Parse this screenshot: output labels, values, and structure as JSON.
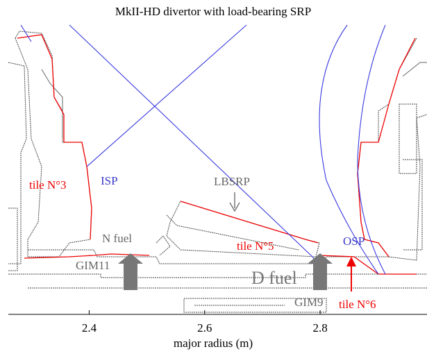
{
  "title": "MkII-HD divertor with load-bearing SRP",
  "axis": {
    "label": "major radius (m)",
    "xlim": [
      2.26,
      2.985
    ],
    "xticks": [
      2.4,
      2.6,
      2.8
    ]
  },
  "labels": {
    "tile3": "tile N°3",
    "isp": "ISP",
    "lbsrp": "LBSRP",
    "nfuel": "N fuel",
    "tile5": "tile N°5",
    "osp": "OSP",
    "gim11": "GIM11",
    "dfuel": "D fuel",
    "gim9": "GIM9",
    "tile6": "tile N°6"
  }
}
